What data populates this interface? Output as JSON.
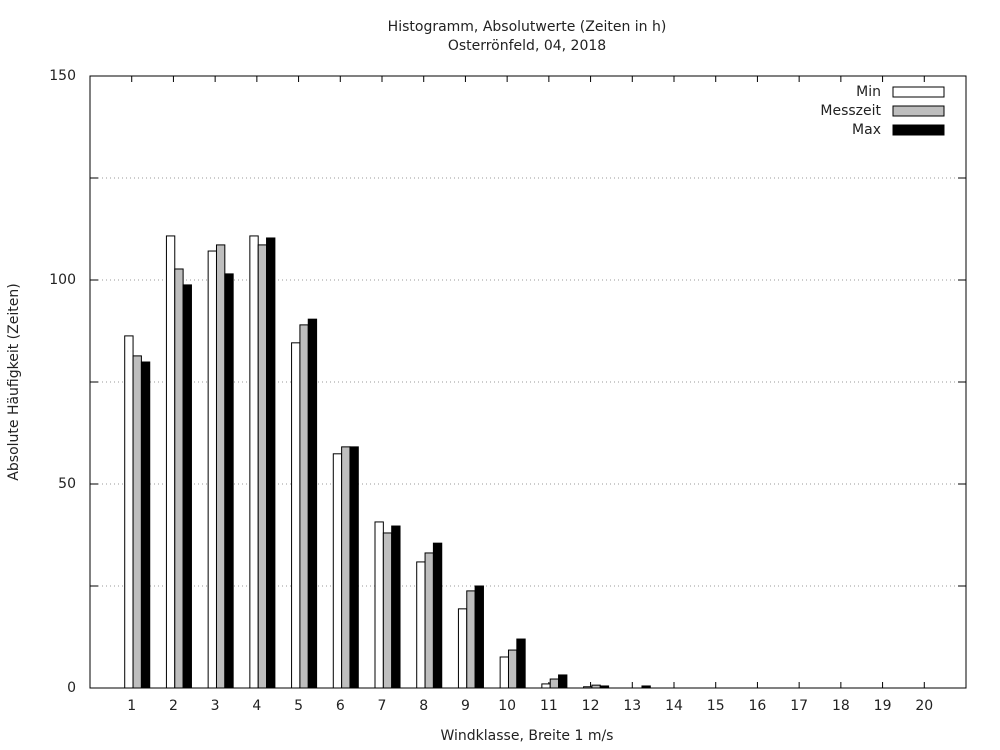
{
  "chart_data": {
    "type": "bar",
    "title": "Histogramm, Absolutwerte (Zeiten in h)",
    "subtitle": "Osterrönfeld, 04, 2018",
    "x_label": "Windklasse, Breite 1 m/s",
    "y_label": "Absolute Häufigkeit (Zeiten)",
    "categories": [
      1,
      2,
      3,
      4,
      5,
      6,
      7,
      8,
      9,
      10,
      11,
      12,
      13,
      14,
      15,
      16,
      17,
      18,
      19,
      20
    ],
    "series": [
      {
        "name": "Min",
        "color": "#ffffff",
        "values": [
          86.3,
          110.8,
          107.1,
          110.8,
          84.6,
          57.4,
          40.7,
          30.9,
          19.4,
          7.6,
          1.0,
          0.3,
          0,
          0,
          0,
          0,
          0,
          0,
          0,
          0
        ]
      },
      {
        "name": "Messzeit",
        "color": "#bebebe",
        "values": [
          81.4,
          102.7,
          108.6,
          108.6,
          89.0,
          59.1,
          38.0,
          33.1,
          23.8,
          9.3,
          2.2,
          0.7,
          0,
          0,
          0,
          0,
          0,
          0,
          0,
          0
        ]
      },
      {
        "name": "Max",
        "color": "#000000",
        "values": [
          79.9,
          98.8,
          101.5,
          110.3,
          90.4,
          59.1,
          39.7,
          35.5,
          25.0,
          12.0,
          3.2,
          0.5,
          0.5,
          0,
          0,
          0,
          0,
          0,
          0,
          0
        ]
      }
    ],
    "ylim": [
      0,
      150
    ],
    "yticks": [
      0,
      50,
      100,
      150
    ],
    "minor_yticks": [
      25,
      75,
      125
    ],
    "grid": true,
    "legend": "top-right"
  }
}
